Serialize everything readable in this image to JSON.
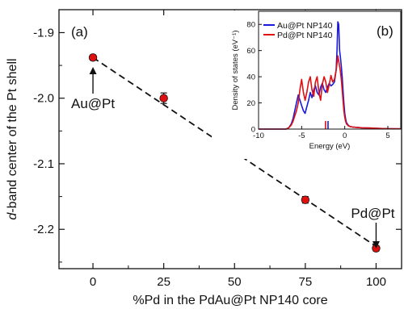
{
  "main_chart": {
    "panel_label": "(a)",
    "xlabel": "%Pd in the PdAu@Pt NP140 core",
    "ylabel_italic": "d",
    "ylabel_rest": "-band center of the Pt shell",
    "xlim": [
      -12,
      109
    ],
    "ylim": [
      -2.26,
      -1.865
    ],
    "x_ticks": [
      0,
      25,
      50,
      75,
      100
    ],
    "x_tick_labels": [
      "0",
      "25",
      "50",
      "75",
      "100"
    ],
    "y_ticks": [
      -1.9,
      -2.0,
      -2.1,
      -2.2
    ],
    "y_tick_labels": [
      "-1.9",
      "-2.0",
      "-2.1",
      "-2.2"
    ],
    "annotation_left": "Au@Pt",
    "annotation_right": "Pd@Pt",
    "marker_color": "#e01010"
  },
  "chart_data": [
    {
      "type": "scatter",
      "x": [
        0,
        25,
        50,
        75,
        100
      ],
      "y": [
        -1.938,
        -2.0,
        -2.076,
        -2.155,
        -2.229
      ],
      "yerr": [
        0.004,
        0.008,
        0.007,
        0.005,
        0.004
      ],
      "fit_line": {
        "x": [
          0,
          100
        ],
        "y": [
          -1.938,
          -2.226
        ]
      },
      "xlim": [
        -12,
        109
      ],
      "ylim": [
        -2.26,
        -1.865
      ],
      "grid": false
    },
    {
      "type": "line",
      "panel_label": "(b)",
      "xlabel": "Energy (eV)",
      "ylabel": "Density of states (eV⁻¹)",
      "xlim": [
        -10,
        6.5
      ],
      "ylim": [
        0,
        90
      ],
      "x_ticks": [
        -10,
        -5,
        0,
        5
      ],
      "x_tick_labels": [
        "-10",
        "-5",
        "0",
        "5"
      ],
      "y_ticks": [
        0,
        20,
        40,
        60,
        80
      ],
      "y_tick_labels": [
        "0",
        "20",
        "40",
        "60",
        "80"
      ],
      "legend_position": "top-left",
      "series": [
        {
          "name": "Au@Pt NP140",
          "color": "#1a1adc",
          "band_center": -1.94,
          "x": [
            -10,
            -6.8,
            -6.5,
            -6.2,
            -6.0,
            -5.8,
            -5.6,
            -5.4,
            -5.2,
            -5.0,
            -4.8,
            -4.6,
            -4.4,
            -4.2,
            -4.0,
            -3.8,
            -3.6,
            -3.4,
            -3.2,
            -3.0,
            -2.8,
            -2.6,
            -2.4,
            -2.2,
            -2.0,
            -1.8,
            -1.6,
            -1.4,
            -1.2,
            -1.0,
            -0.9,
            -0.8,
            -0.7,
            -0.6,
            -0.5,
            -0.4,
            -0.3,
            -0.2,
            -0.1,
            0.0,
            0.1,
            0.2,
            0.4,
            0.6,
            1.0,
            2.0,
            3.0,
            4.0,
            5.0,
            6.5
          ],
          "y": [
            0,
            0,
            1,
            4,
            8,
            14,
            20,
            26,
            22,
            18,
            14,
            12,
            17,
            22,
            28,
            24,
            30,
            33,
            28,
            26,
            32,
            35,
            30,
            28,
            32,
            35,
            33,
            34,
            36,
            45,
            60,
            82,
            80,
            60,
            55,
            48,
            40,
            30,
            20,
            12,
            8,
            5,
            3,
            2,
            1.5,
            1,
            0.8,
            0.5,
            0.3,
            0.2
          ]
        },
        {
          "name": "Pd@Pt NP140",
          "color": "#e01010",
          "band_center": -2.23,
          "x": [
            -10,
            -6.8,
            -6.5,
            -6.2,
            -6.0,
            -5.8,
            -5.6,
            -5.4,
            -5.2,
            -5.0,
            -4.8,
            -4.6,
            -4.4,
            -4.2,
            -4.0,
            -3.8,
            -3.6,
            -3.4,
            -3.2,
            -3.0,
            -2.8,
            -2.6,
            -2.4,
            -2.2,
            -2.0,
            -1.8,
            -1.6,
            -1.4,
            -1.2,
            -1.0,
            -0.9,
            -0.8,
            -0.7,
            -0.6,
            -0.5,
            -0.4,
            -0.3,
            -0.2,
            -0.1,
            0.0,
            0.1,
            0.2,
            0.4,
            0.6,
            1.0,
            2.0,
            3.0,
            4.0,
            5.0,
            6.5
          ],
          "y": [
            0,
            0,
            1,
            3,
            6,
            10,
            14,
            20,
            30,
            38,
            28,
            22,
            28,
            36,
            40,
            30,
            25,
            36,
            40,
            28,
            22,
            34,
            40,
            36,
            28,
            34,
            41,
            36,
            38,
            45,
            50,
            56,
            52,
            48,
            44,
            38,
            30,
            22,
            14,
            9,
            6,
            4,
            2.5,
            2,
            1.5,
            1,
            0.8,
            0.5,
            0.3,
            0.2
          ]
        }
      ]
    }
  ]
}
